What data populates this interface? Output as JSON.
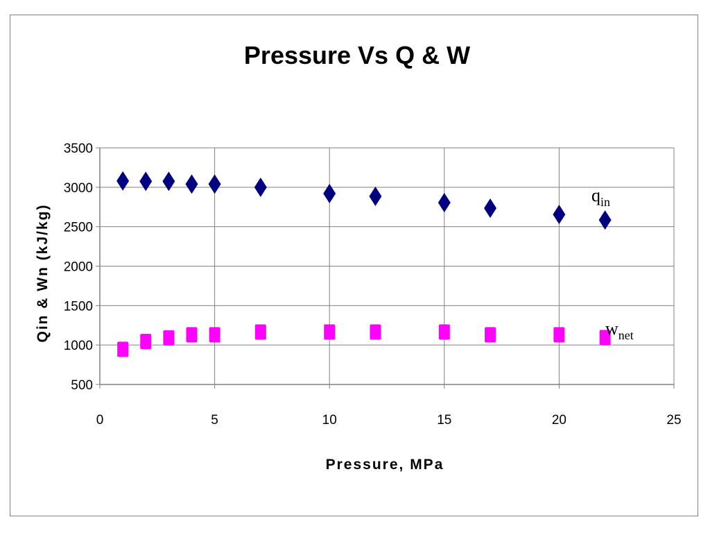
{
  "chart_data": {
    "type": "scatter",
    "title": "Pressure Vs Q & W",
    "xlabel": "Pressure, MPa",
    "ylabel": "Qin & Wn (kJ/kg)",
    "xlim": [
      0,
      25
    ],
    "ylim": [
      500,
      3500
    ],
    "xticks": [
      0,
      5,
      10,
      15,
      20,
      25
    ],
    "yticks": [
      500,
      1000,
      1500,
      2000,
      2500,
      3000,
      3500
    ],
    "grid": true,
    "legend": "none",
    "series": [
      {
        "name": "q",
        "name_sub": "in",
        "marker": "diamond",
        "color": "#000080",
        "x": [
          1,
          2,
          3,
          4,
          5,
          7,
          10,
          12,
          15,
          17,
          20,
          22
        ],
        "y": [
          3080,
          3075,
          3075,
          3040,
          3040,
          3000,
          2920,
          2885,
          2805,
          2735,
          2655,
          2585
        ]
      },
      {
        "name": "w",
        "name_sub": "net",
        "marker": "square",
        "color": "#ff00ff",
        "x": [
          1,
          2,
          3,
          4,
          5,
          7,
          10,
          12,
          15,
          17,
          20,
          22
        ],
        "y": [
          945,
          1045,
          1090,
          1130,
          1130,
          1165,
          1165,
          1165,
          1165,
          1130,
          1130,
          1095
        ]
      }
    ]
  }
}
